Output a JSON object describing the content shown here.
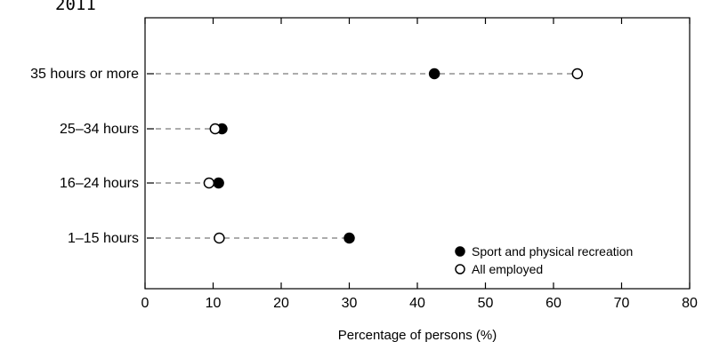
{
  "chart_data": {
    "type": "dot",
    "title": "2011",
    "xlabel": "Percentage of persons (%)",
    "ylabel": "",
    "xlim": [
      0,
      80
    ],
    "xticks": [
      0,
      10,
      20,
      30,
      40,
      50,
      60,
      70,
      80
    ],
    "categories": [
      "35 hours or more",
      "25–34 hours",
      "16–24 hours",
      "1–15 hours"
    ],
    "series": [
      {
        "name": "Sport and physical recreation",
        "marker": "filled-circle",
        "values": [
          42.5,
          11.3,
          10.8,
          30.0
        ]
      },
      {
        "name": "All employed",
        "marker": "open-circle",
        "values": [
          63.5,
          10.3,
          9.4,
          10.9
        ]
      }
    ],
    "legend": "bottom-right",
    "grid": false,
    "connector": "dashed-line"
  },
  "colors": {
    "foreground": "#000000",
    "background": "#ffffff",
    "connector": "#7a7a7a"
  }
}
